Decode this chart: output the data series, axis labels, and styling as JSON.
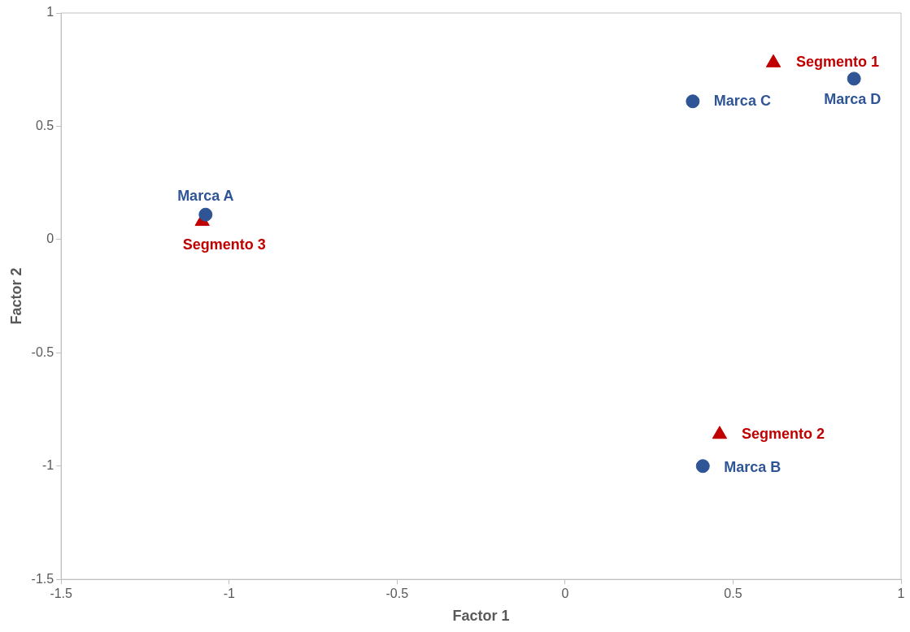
{
  "chart_data": {
    "type": "scatter",
    "xlabel": "Factor 1",
    "ylabel": "Factor 2",
    "xlim": [
      -1.5,
      1
    ],
    "xticks": [
      -1.5,
      -1,
      -0.5,
      0,
      0.5,
      1
    ],
    "ylim": [
      -1.5,
      1
    ],
    "yticks": [
      -1.5,
      -1,
      -0.5,
      0,
      0.5,
      1
    ],
    "grid": false,
    "legend": false,
    "series": [
      {
        "color": "#2f5597",
        "marker": "circle",
        "x": [
          -1.07,
          0.41,
          0.38,
          0.86
        ],
        "values": [
          0.11,
          -1.0,
          0.61,
          0.71
        ]
      },
      {
        "color": "#c00000",
        "marker": "triangle",
        "x": [
          0.62,
          0.46,
          -1.08
        ],
        "values": [
          0.78,
          -0.86,
          0.08
        ]
      }
    ],
    "annotations": [
      {
        "text": "Marca A",
        "x": -1.07,
        "y": 0.11
      },
      {
        "text": "Marca B",
        "x": 0.41,
        "y": -1.0
      },
      {
        "text": "Marca C",
        "x": 0.38,
        "y": 0.61
      },
      {
        "text": "Marca D",
        "x": 0.86,
        "y": 0.71
      },
      {
        "text": "Segmento 1",
        "x": 0.62,
        "y": 0.78
      },
      {
        "text": "Segmento 2",
        "x": 0.46,
        "y": -0.86
      },
      {
        "text": "Segmento 3",
        "x": -1.08,
        "y": 0.08
      }
    ]
  }
}
